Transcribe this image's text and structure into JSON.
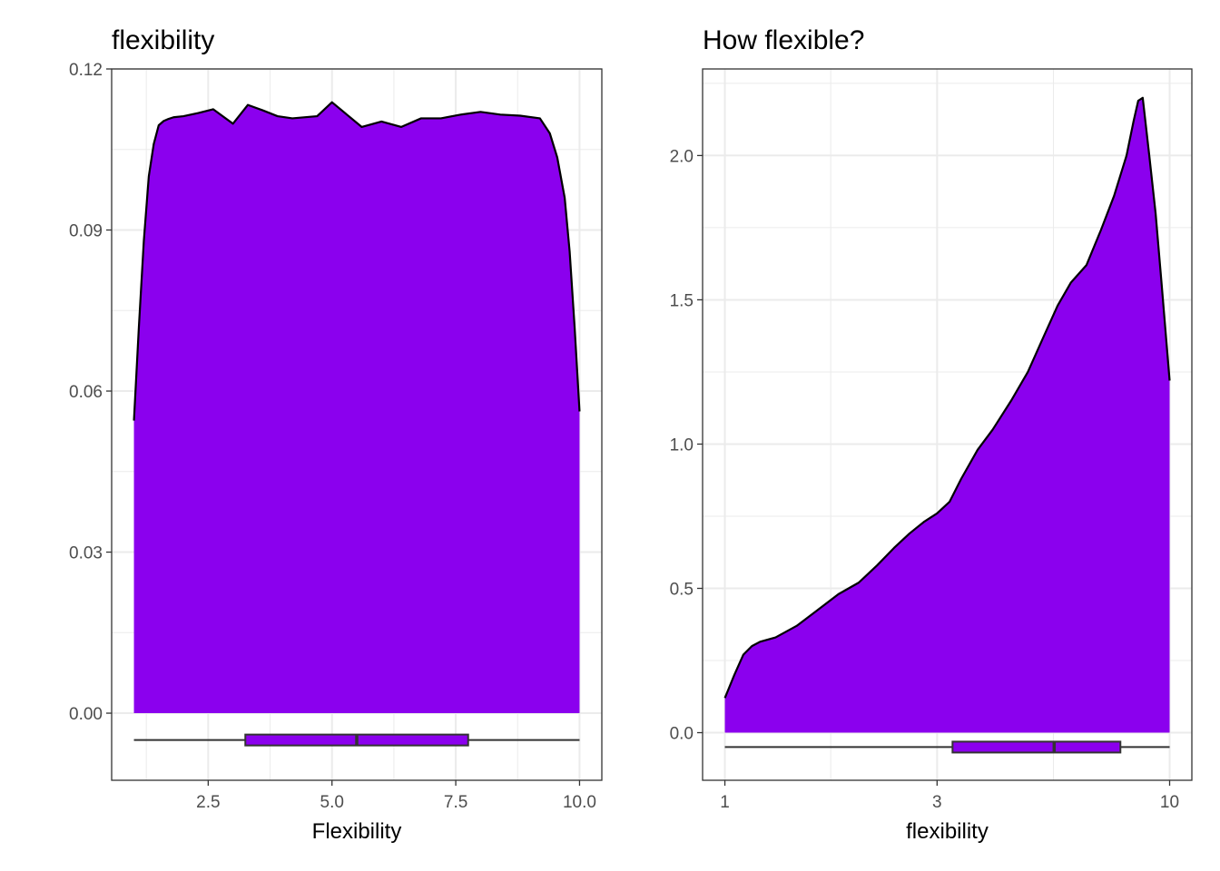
{
  "chart_data": [
    {
      "type": "density",
      "title": "flexibility",
      "xlabel": "Flexibility",
      "ylabel": "",
      "x_scale": "linear",
      "xlim": [
        0.55,
        10.45
      ],
      "ylim": [
        -0.0125,
        0.12
      ],
      "x_ticks": [
        2.5,
        5.0,
        7.5,
        10.0
      ],
      "x_tick_labels": [
        "2.5",
        "5.0",
        "7.5",
        "10.0"
      ],
      "x_minor_ticks": [
        1.25,
        3.75,
        6.25,
        8.75
      ],
      "y_ticks": [
        0.0,
        0.03,
        0.06,
        0.09,
        0.12
      ],
      "y_tick_labels": [
        "0.00",
        "0.03",
        "0.06",
        "0.09",
        "0.12"
      ],
      "y_minor_ticks": [
        0.015,
        0.045,
        0.075,
        0.105
      ],
      "grid": true,
      "fill_color": "#8B00EE",
      "line_color": "#000000",
      "density": {
        "x": [
          1.0,
          1.1,
          1.2,
          1.3,
          1.4,
          1.5,
          1.6,
          1.7,
          1.8,
          2.0,
          2.3,
          2.6,
          3.0,
          3.3,
          3.6,
          3.9,
          4.2,
          4.7,
          5.0,
          5.3,
          5.6,
          6.0,
          6.4,
          6.8,
          7.2,
          7.6,
          8.0,
          8.4,
          8.8,
          9.2,
          9.4,
          9.55,
          9.7,
          9.8,
          9.9,
          10.0
        ],
        "y": [
          0.0545,
          0.072,
          0.088,
          0.1,
          0.106,
          0.1095,
          0.1103,
          0.1107,
          0.111,
          0.1112,
          0.1118,
          0.1125,
          0.1098,
          0.1133,
          0.1123,
          0.1112,
          0.1108,
          0.1112,
          0.1138,
          0.1115,
          0.1092,
          0.1102,
          0.1092,
          0.1108,
          0.1108,
          0.1115,
          0.112,
          0.1115,
          0.1113,
          0.1108,
          0.108,
          0.1035,
          0.096,
          0.086,
          0.072,
          0.0562
        ]
      },
      "boxplot": {
        "min": 1.0,
        "q1": 3.25,
        "median": 5.5,
        "q3": 7.75,
        "max": 10.0,
        "y": -0.005
      }
    },
    {
      "type": "density",
      "title": "How flexible?",
      "xlabel": "flexibility",
      "ylabel": "",
      "x_scale": "log10",
      "xlim": [
        0.891,
        11.22
      ],
      "ylim": [
        -0.165,
        2.3
      ],
      "x_ticks": [
        1,
        3,
        10
      ],
      "x_tick_labels": [
        "1",
        "3",
        "10"
      ],
      "x_minor_ticks": [
        1.73,
        5.48
      ],
      "y_ticks": [
        0.0,
        0.5,
        1.0,
        1.5,
        2.0
      ],
      "y_tick_labels": [
        "0.0",
        "0.5",
        "1.0",
        "1.5",
        "2.0"
      ],
      "y_minor_ticks": [
        0.25,
        0.75,
        1.25,
        1.75,
        2.25
      ],
      "grid": true,
      "fill_color": "#8B00EE",
      "line_color": "#000000",
      "density": {
        "x": [
          1.0,
          1.05,
          1.1,
          1.15,
          1.2,
          1.3,
          1.45,
          1.6,
          1.8,
          2.0,
          2.2,
          2.4,
          2.6,
          2.8,
          3.0,
          3.2,
          3.4,
          3.7,
          4.0,
          4.4,
          4.8,
          5.2,
          5.6,
          6.0,
          6.5,
          7.0,
          7.5,
          8.0,
          8.3,
          8.5,
          8.7,
          9.0,
          9.3,
          9.6,
          10.0
        ],
        "y": [
          0.12,
          0.2,
          0.27,
          0.3,
          0.315,
          0.33,
          0.37,
          0.42,
          0.48,
          0.52,
          0.58,
          0.64,
          0.69,
          0.73,
          0.76,
          0.8,
          0.88,
          0.98,
          1.05,
          1.15,
          1.25,
          1.37,
          1.48,
          1.56,
          1.62,
          1.74,
          1.86,
          2.0,
          2.12,
          2.19,
          2.2,
          2.0,
          1.8,
          1.55,
          1.22
        ]
      },
      "boxplot": {
        "min": 1.0,
        "q1": 3.25,
        "median": 5.5,
        "q3": 7.75,
        "max": 10.0,
        "y": -0.05
      }
    }
  ]
}
